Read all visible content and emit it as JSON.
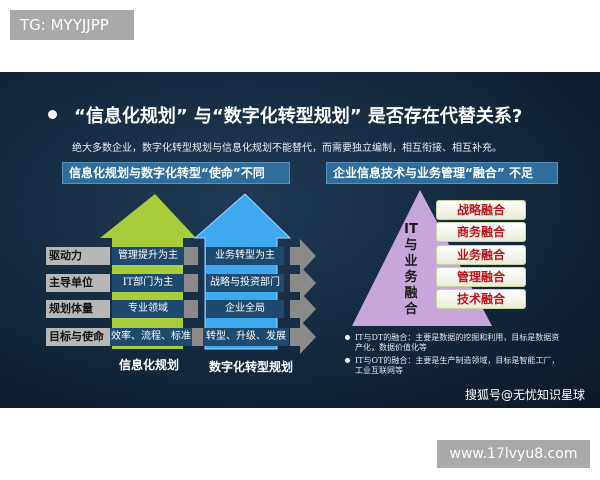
{
  "tag": "TG: MYYJJPP",
  "site": "www.17lvyu8.com",
  "slide": {
    "title": "“信息化规划” 与“数字化转型规划” 是否存在代替关系?",
    "subtitle": "绝大多数企业，数字化转型规划与信息化规划不能替代，而需要独立编制，相互衔接、相互补充。",
    "left_banner": "信息化规划与数字化转型“使命”不同",
    "right_banner": "企业信息技术与业务管理“融合” 不足",
    "rows": [
      {
        "label": "驱动力",
        "info": "管理提升为主",
        "digital": "业务转型为主"
      },
      {
        "label": "主导单位",
        "info": "IT部门为主",
        "digital": "战略与投资部门"
      },
      {
        "label": "规划体量",
        "info": "专业领域",
        "digital": "企业全局"
      },
      {
        "label": "目标与使命",
        "info": "效率、流程、标准",
        "digital": "转型、升级、发展"
      }
    ],
    "info_label": "信息化规划",
    "digital_label": "数字化转型规划",
    "pyramid_label": "IT与业务融合",
    "fusion": [
      "战略融合",
      "商务融合",
      "业务融合",
      "管理融合",
      "技术融合"
    ],
    "bullets": [
      "IT与DT的融合：主要是数据的挖掘和利用，目标是数据资产化，数据价值化等",
      "IT与OT的融合：主要是生产制造领域，目标是智能工厂，工业互联网等"
    ],
    "watermark": "搜狐号@无忧知识星球",
    "colors": {
      "green": "#a8cc3a",
      "blue": "#3fa9f0",
      "purple": "#c7a6dc",
      "red": "#c0141c"
    }
  }
}
